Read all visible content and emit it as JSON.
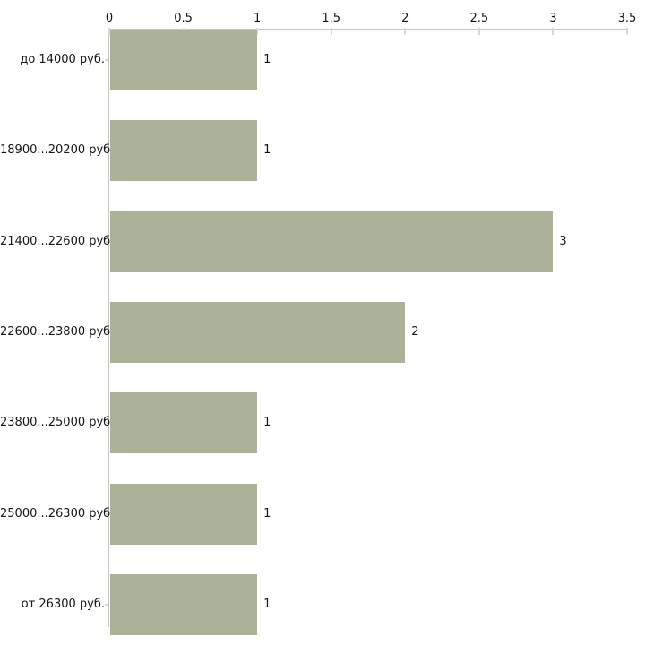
{
  "chart_data": {
    "type": "bar",
    "orientation": "horizontal",
    "title": "",
    "xlabel": "",
    "ylabel": "",
    "categories": [
      "до 14000 руб.",
      "18900...20200 руб.",
      "21400...22600 руб.",
      "22600...23800 руб.",
      "23800...25000 руб.",
      "25000...26300 руб.",
      "от 26300 руб."
    ],
    "values": [
      1,
      1,
      3,
      2,
      1,
      1,
      1
    ],
    "value_labels": [
      "1",
      "1",
      "3",
      "2",
      "1",
      "1",
      "1"
    ],
    "x_ticks": [
      0,
      0.5,
      1,
      1.5,
      2,
      2.5,
      3,
      3.5
    ],
    "x_tick_labels": [
      "0",
      "0.5",
      "1",
      "1.5",
      "2",
      "2.5",
      "3",
      "3.5"
    ],
    "xlim": [
      0,
      3.5
    ],
    "grid": false,
    "legend": null,
    "axis_position": "top",
    "colors": {
      "bar": "#acb299",
      "axis": "#c5c5c5",
      "tick": "#d8dcc6",
      "text": "#151515",
      "background": "#ffffff"
    }
  }
}
